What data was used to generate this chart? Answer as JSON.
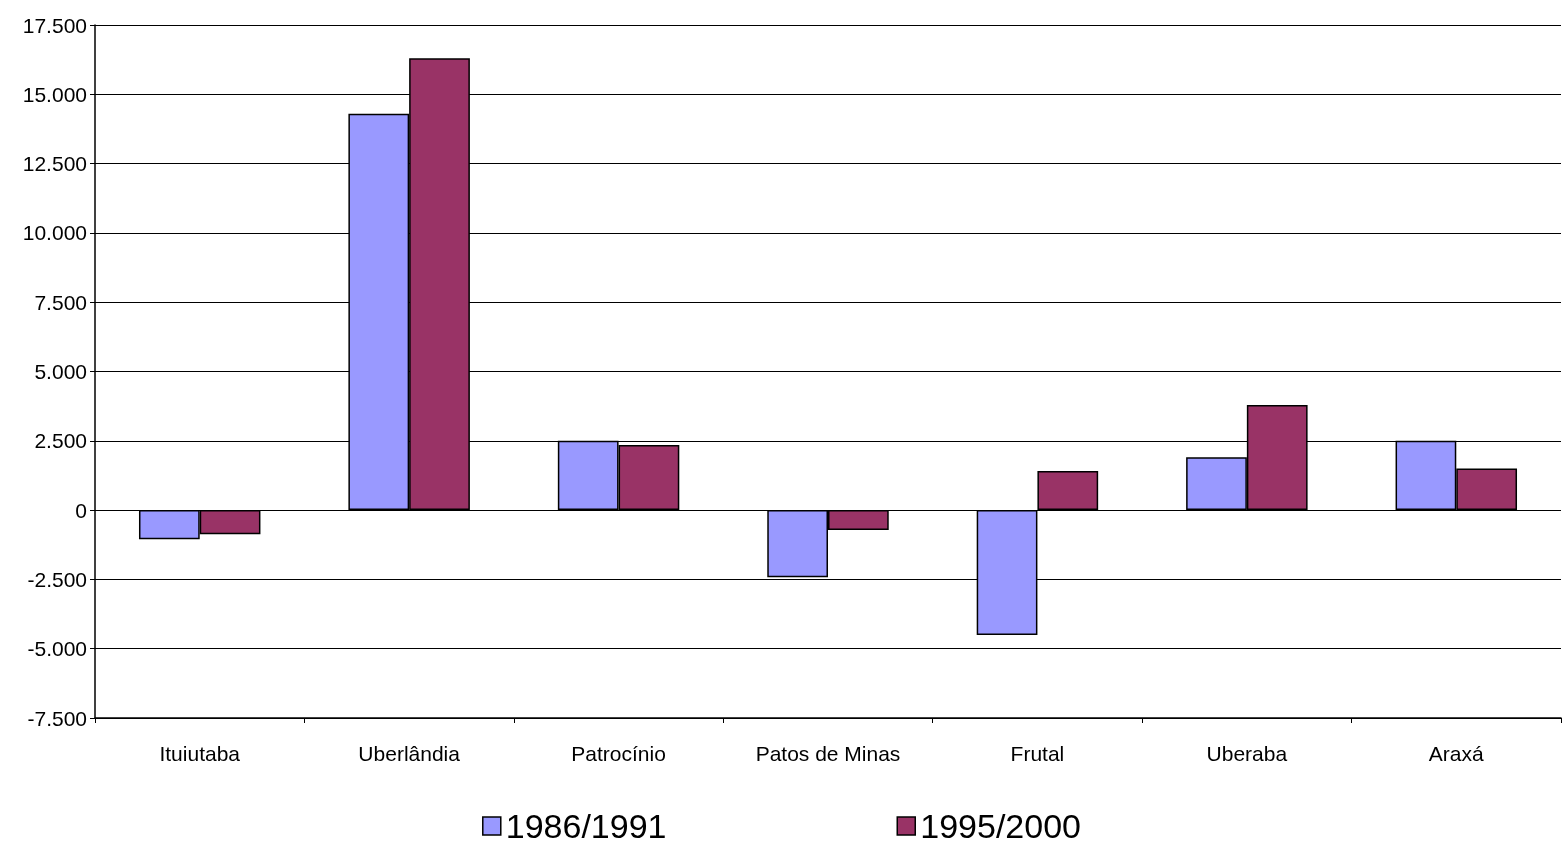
{
  "chart_data": {
    "type": "bar",
    "categories": [
      "Ituiutaba",
      "Uberlândia",
      "Patrocínio",
      "Patos de Minas",
      "Frutal",
      "Uberaba",
      "Araxá"
    ],
    "series": [
      {
        "name": "1986/1991",
        "color": "#9999ff",
        "values": [
          -1050,
          14300,
          2500,
          -2420,
          -4510,
          1910,
          2500
        ]
      },
      {
        "name": "1995/2000",
        "color": "#993366",
        "values": [
          -870,
          16300,
          2350,
          -720,
          1410,
          3790,
          1500
        ]
      }
    ],
    "ylim": [
      -7500,
      17500
    ],
    "yticks": [
      {
        "value": -7500,
        "label": "-7.500"
      },
      {
        "value": -5000,
        "label": "-5.000"
      },
      {
        "value": -2500,
        "label": "-2.500"
      },
      0,
      {
        "value": 2500,
        "label": "2.500"
      },
      {
        "value": 5000,
        "label": "5.000"
      },
      {
        "value": 7500,
        "label": "7.500"
      },
      {
        "value": 10000,
        "label": "10.000"
      },
      {
        "value": 12500,
        "label": "12.500"
      },
      {
        "value": 15000,
        "label": "15.000"
      },
      {
        "value": 17500,
        "label": "17.500"
      }
    ],
    "grid": "y",
    "legend": "bottom"
  }
}
